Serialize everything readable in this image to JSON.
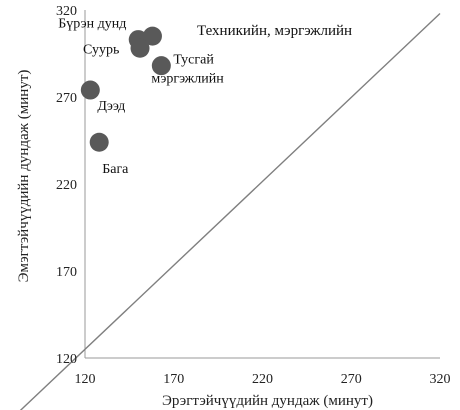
{
  "chart_data": {
    "type": "scatter",
    "xlabel": "Эрэгтэйчүүдийн дундаж (минут)",
    "ylabel": "Эмэгтэйчүүдийн дундаж (минут)",
    "xlim": [
      120,
      320
    ],
    "ylim": [
      120,
      320
    ],
    "xticks": [
      120,
      170,
      220,
      270,
      320
    ],
    "yticks": [
      120,
      170,
      220,
      270,
      320
    ],
    "grid": false,
    "reference_line": {
      "from": [
        120,
        125
      ],
      "to": [
        320,
        318
      ],
      "color": "#7f7f7f"
    },
    "annotation": "Техникийн, мэргэжлийн",
    "marker_color": "#595959",
    "points": [
      {
        "label": "Бүрэн дунд",
        "x": 150,
        "y": 303
      },
      {
        "label": "",
        "x": 158,
        "y": 305
      },
      {
        "label": "Суурь",
        "x": 151,
        "y": 298
      },
      {
        "label": "Тусгай мэргэжлийн",
        "x": 163,
        "y": 288
      },
      {
        "label": "Дээд",
        "x": 123,
        "y": 274
      },
      {
        "label": "Бага",
        "x": 128,
        "y": 244
      }
    ]
  }
}
